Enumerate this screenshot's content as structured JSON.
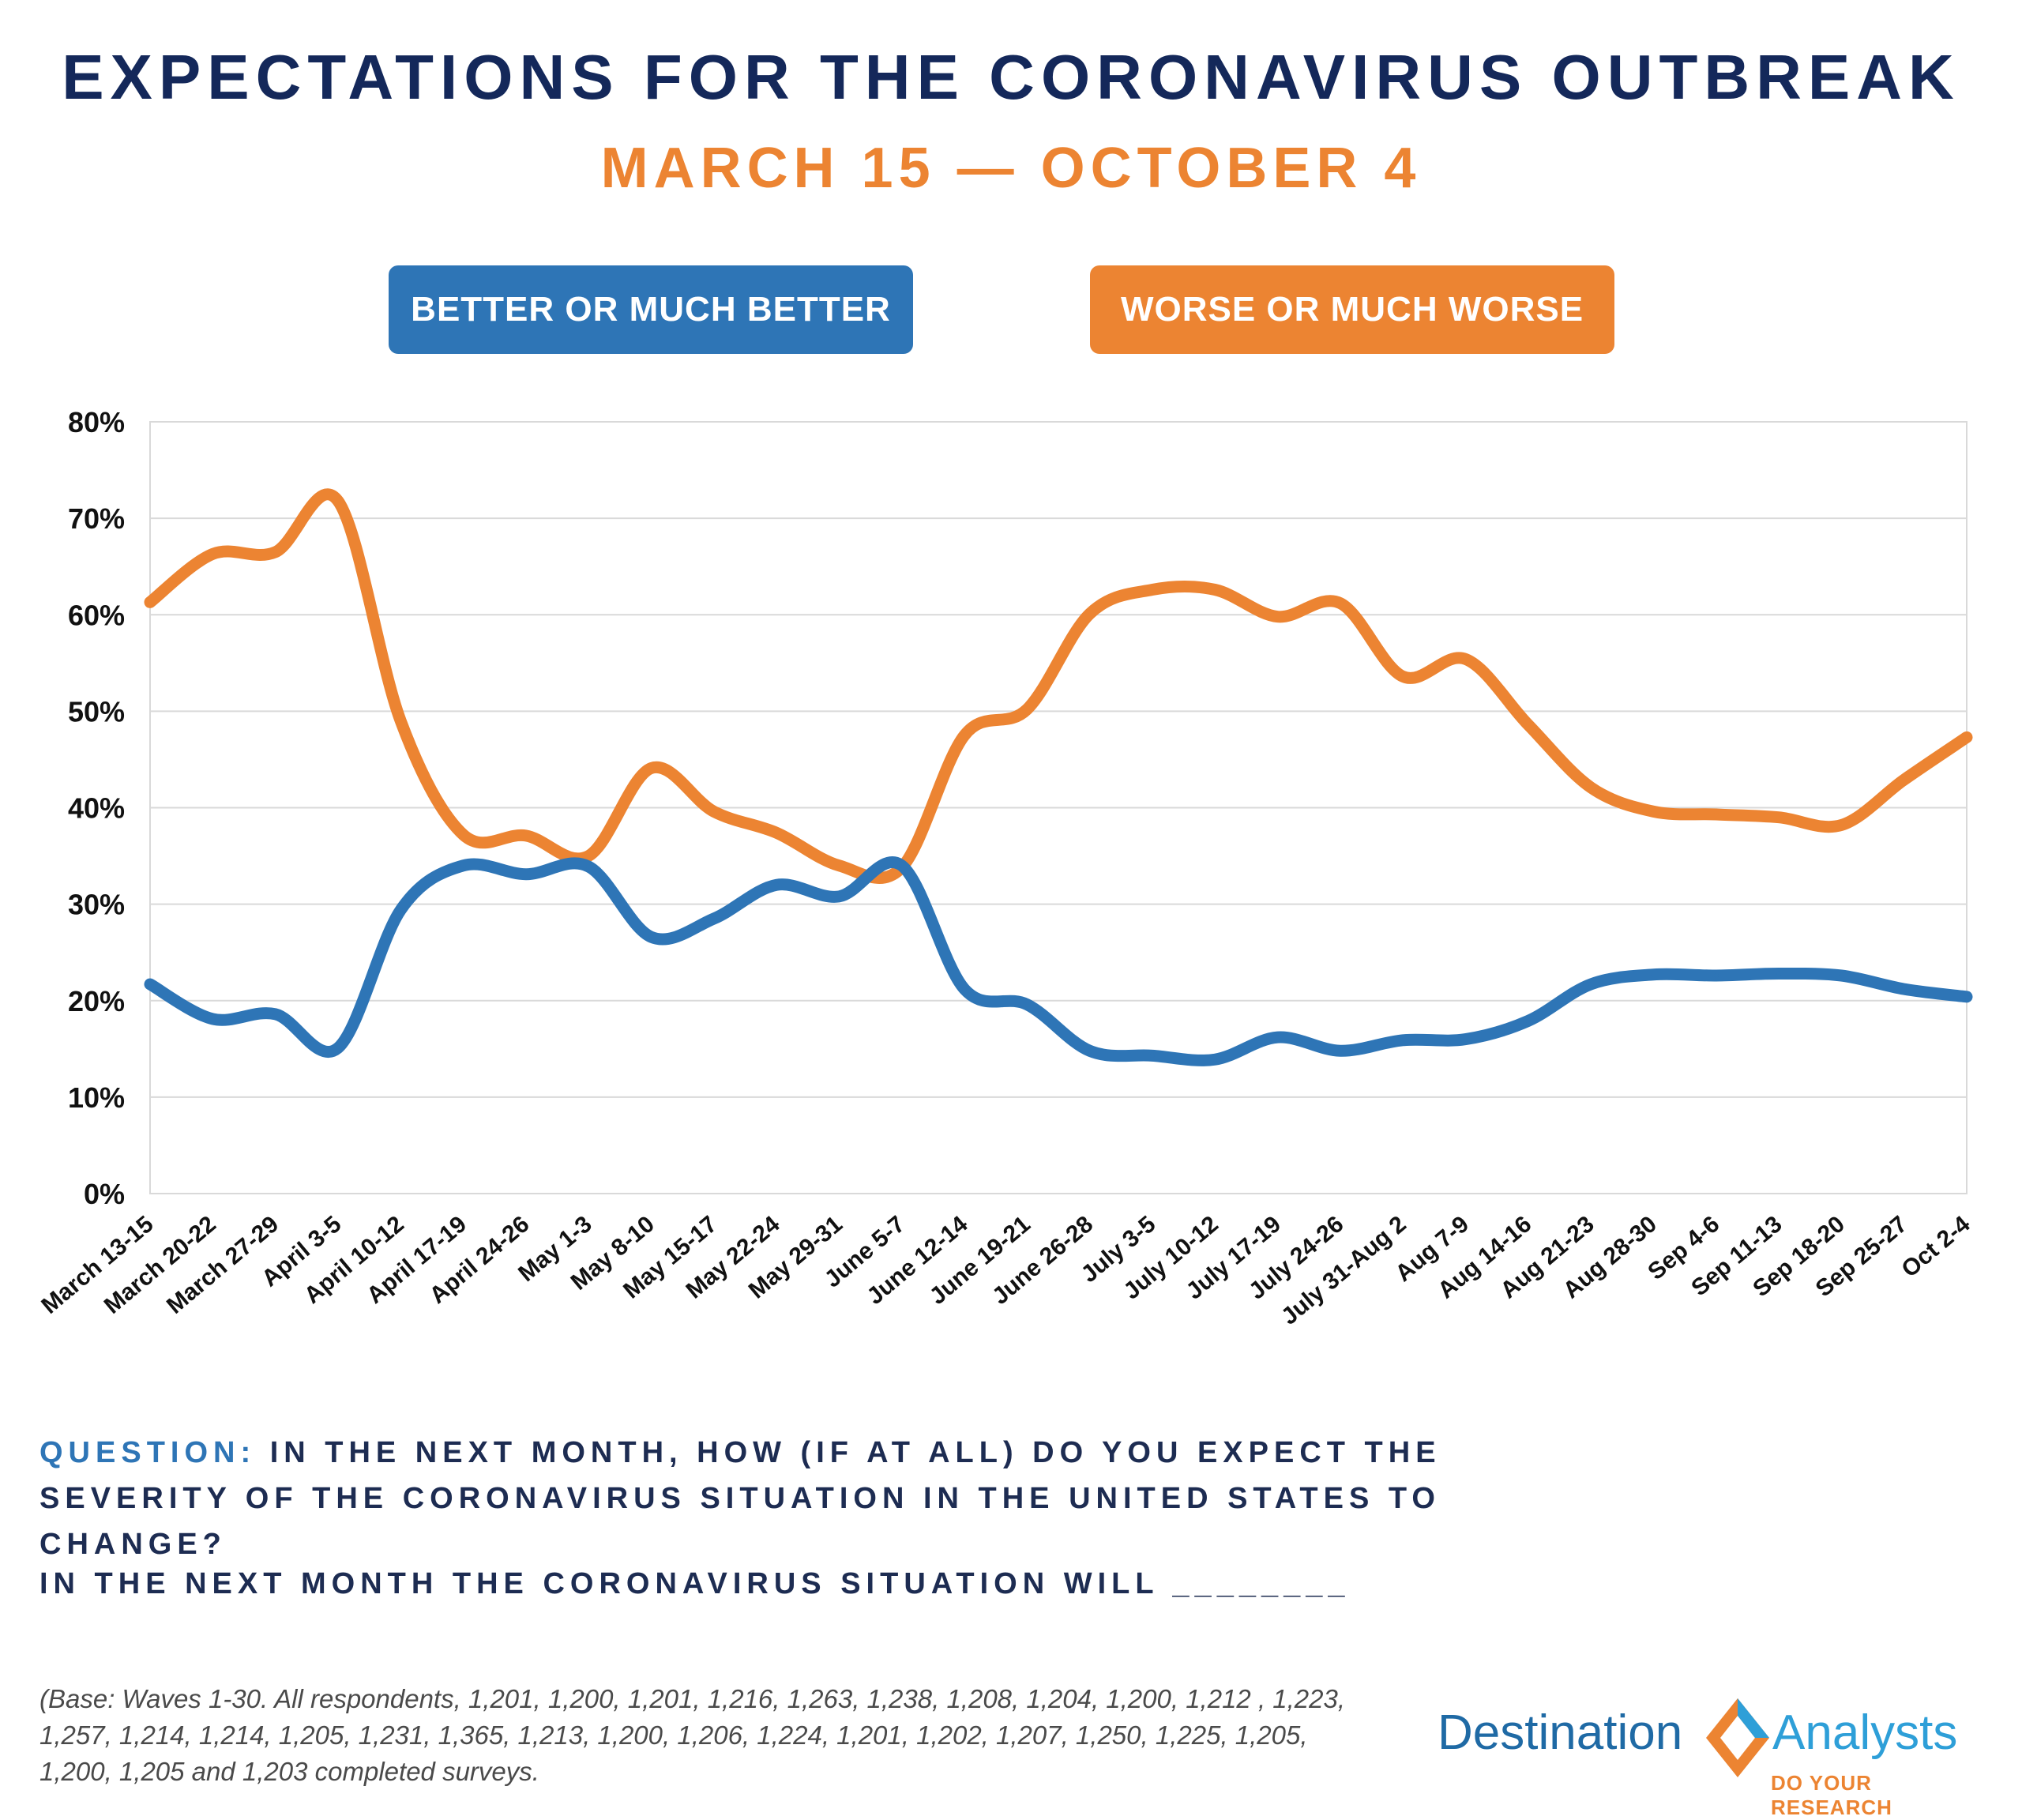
{
  "header": {
    "title": "EXPECTATIONS FOR THE CORONAVIRUS OUTBREAK",
    "subtitle": "MARCH 15 — OCTOBER 4"
  },
  "legend": {
    "better_label": "BETTER OR MUCH BETTER",
    "worse_label": "WORSE OR MUCH WORSE"
  },
  "colors": {
    "better": "#2e75b6",
    "worse": "#ec8432",
    "title": "#14285a"
  },
  "chart_data": {
    "type": "line",
    "title": "Expectations for the Coronavirus Outbreak",
    "xlabel": "",
    "ylabel": "",
    "ylim": [
      0,
      80
    ],
    "yticks": [
      0,
      10,
      20,
      30,
      40,
      50,
      60,
      70,
      80
    ],
    "ytick_labels": [
      "0%",
      "10%",
      "20%",
      "30%",
      "40%",
      "50%",
      "60%",
      "70%",
      "80%"
    ],
    "grid": true,
    "categories": [
      "March 13-15",
      "March 20-22",
      "March 27-29",
      "April 3-5",
      "April 10-12",
      "April 17-19",
      "April 24-26",
      "May 1-3",
      "May 8-10",
      "May 15-17",
      "May 22-24",
      "May 29-31",
      "June 5-7",
      "June 12-14",
      "June 19-21",
      "June 26-28",
      "July 3-5",
      "July 10-12",
      "July 17-19",
      "July 24-26",
      "July 31-Aug 2",
      "Aug 7-9",
      "Aug 14-16",
      "Aug 21-23",
      "Aug 28-30",
      "Sep 4-6",
      "Sep 11-13",
      "Sep 18-20",
      "Sep 25-27",
      "Oct 2-4"
    ],
    "series": [
      {
        "name": "BETTER OR MUCH BETTER",
        "color": "#2e75b6",
        "values": [
          21.7,
          18.1,
          18.6,
          15.1,
          29.4,
          34.0,
          33.1,
          33.9,
          26.6,
          28.5,
          32.0,
          30.8,
          34.0,
          21.2,
          19.6,
          14.8,
          14.3,
          13.9,
          16.2,
          14.8,
          15.9,
          16.0,
          17.9,
          21.7,
          22.7,
          22.6,
          22.8,
          22.6,
          21.2,
          20.4
        ]
      },
      {
        "name": "WORSE OR MUCH WORSE",
        "color": "#ec8432",
        "values": [
          61.3,
          66.3,
          66.5,
          71.8,
          49.0,
          37.2,
          37.1,
          35.0,
          44.1,
          39.6,
          37.4,
          34.0,
          33.8,
          47.5,
          50.2,
          60.1,
          62.6,
          62.6,
          59.8,
          61.2,
          53.6,
          55.4,
          48.6,
          42.1,
          39.6,
          39.3,
          39.0,
          38.2,
          42.9,
          47.3
        ]
      }
    ]
  },
  "question": {
    "label": "QUESTION:",
    "text": "IN THE NEXT MONTH, HOW (IF AT ALL) DO YOU EXPECT THE SEVERITY OF THE CORONAVIRUS SITUATION IN THE UNITED STATES TO CHANGE?",
    "fill_in": "IN THE NEXT MONTH THE CORONAVIRUS SITUATION WILL ________"
  },
  "footnote": "(Base: Waves 1-30.  All respondents, 1,201, 1,200, 1,201, 1,216, 1,263, 1,238, 1,208, 1,204, 1,200, 1,212 , 1,223, 1,257, 1,214, 1,214, 1,205, 1,231, 1,365, 1,213, 1,200, 1,206, 1,224, 1,201, 1,202, 1,207, 1,250, 1,225, 1,205, 1,200, 1,205 and 1,203 completed surveys.",
  "logo": {
    "left": "Destination",
    "right": "Analysts",
    "tagline": "DO YOUR RESEARCH"
  }
}
